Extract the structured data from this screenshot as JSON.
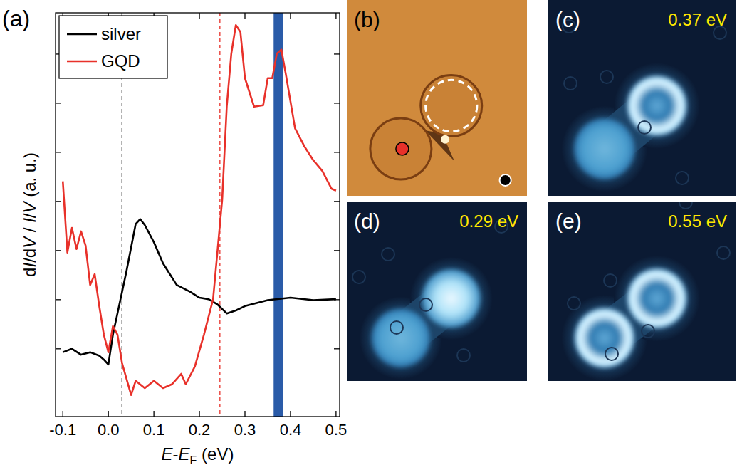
{
  "chart_data": {
    "type": "line",
    "label": "(a)",
    "x_label": [
      {
        "text": "E",
        "italic": true
      },
      {
        "text": "-"
      },
      {
        "text": "E",
        "italic": true
      },
      {
        "text": "F",
        "sub": true
      },
      {
        "text": " (eV)"
      }
    ],
    "y_label": [
      {
        "text": "d"
      },
      {
        "text": "I",
        "italic": true
      },
      {
        "text": "/d"
      },
      {
        "text": "V",
        "italic": true
      },
      {
        "text": " / "
      },
      {
        "text": "I",
        "italic": true
      },
      {
        "text": "/"
      },
      {
        "text": "V",
        "italic": true
      },
      {
        "text": " (a. u.)"
      }
    ],
    "xlim": [
      -0.116,
      0.508
    ],
    "ylim": [
      -0.38,
      7.84
    ],
    "xticks": [
      -0.1,
      {
        "value": 0,
        "label": "0.0"
      },
      0.1,
      0.2,
      0.3,
      0.4,
      0.5
    ],
    "yticks": [
      1,
      2,
      3,
      4,
      5,
      6,
      7
    ],
    "tick_labels": "x",
    "legend": "upper left",
    "series": [
      {
        "name": "silver",
        "color": "#000000",
        "x": [
          -0.1,
          -0.08,
          -0.06,
          -0.04,
          -0.02,
          -0.01,
          0.0,
          0.01,
          0.02,
          0.04,
          0.06,
          0.07,
          0.08,
          0.1,
          0.12,
          0.15,
          0.18,
          0.2,
          0.22,
          0.24,
          0.26,
          0.28,
          0.3,
          0.35,
          0.4,
          0.45,
          0.5
        ],
        "values": [
          0.93,
          1.0,
          0.88,
          0.93,
          0.86,
          0.78,
          0.68,
          1.29,
          1.72,
          2.59,
          3.54,
          3.64,
          3.52,
          3.17,
          2.74,
          2.3,
          2.16,
          2.04,
          2.01,
          1.9,
          1.72,
          1.78,
          1.87,
          1.99,
          2.04,
          1.99,
          2.01
        ]
      },
      {
        "name": "GQD",
        "color": "#e8312a",
        "x": [
          -0.1,
          -0.09,
          -0.08,
          -0.07,
          -0.06,
          -0.05,
          -0.04,
          -0.03,
          -0.02,
          -0.01,
          0.0,
          0.01,
          0.02,
          0.03,
          0.05,
          0.06,
          0.08,
          0.1,
          0.12,
          0.14,
          0.16,
          0.17,
          0.19,
          0.21,
          0.23,
          0.25,
          0.26,
          0.27,
          0.28,
          0.29,
          0.3,
          0.32,
          0.34,
          0.35,
          0.36,
          0.37,
          0.38,
          0.39,
          0.41,
          0.43,
          0.45,
          0.47,
          0.49,
          0.5
        ],
        "values": [
          4.41,
          2.96,
          3.46,
          3.03,
          3.39,
          3.1,
          2.3,
          2.52,
          1.87,
          1.29,
          0.93,
          1.46,
          1.29,
          0.71,
          0.06,
          0.35,
          0.2,
          0.35,
          0.2,
          0.28,
          0.49,
          0.28,
          0.64,
          1.29,
          2.01,
          4.04,
          5.93,
          7.01,
          7.59,
          7.45,
          6.51,
          5.93,
          5.96,
          6.51,
          6.51,
          7.01,
          7.09,
          6.58,
          5.49,
          5.13,
          4.84,
          4.62,
          4.26,
          4.22
        ]
      }
    ],
    "vlines": [
      {
        "x": 0.03,
        "color": "#000000"
      },
      {
        "x": 0.245,
        "color": "#e8312a"
      }
    ],
    "band": {
      "range": [
        0.363,
        0.383
      ],
      "color": "#2a5ba8"
    }
  },
  "images": [
    {
      "label": "(b)"
    },
    {
      "label": "(c)",
      "energy": "0.37 eV"
    },
    {
      "label": "(d)",
      "energy": "0.29 eV"
    },
    {
      "label": "(e)",
      "energy": "0.55 eV"
    }
  ]
}
